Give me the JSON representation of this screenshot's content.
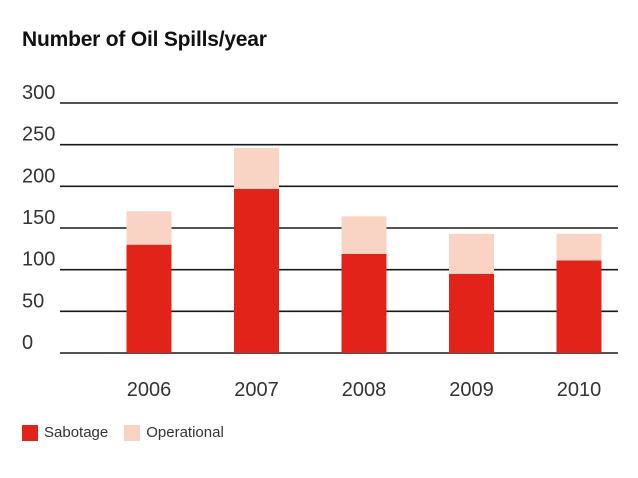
{
  "chart_data": {
    "type": "bar",
    "stacked": true,
    "title": "Number of Oil Spills/year",
    "xlabel": "",
    "ylabel": "",
    "categories": [
      "2006",
      "2007",
      "2008",
      "2009",
      "2010"
    ],
    "series": [
      {
        "name": "Sabotage",
        "values": [
          130,
          197,
          119,
          95,
          111
        ],
        "color": "#e2231a"
      },
      {
        "name": "Operational",
        "values": [
          40,
          49,
          45,
          48,
          32
        ],
        "color": "#f9d4c4"
      }
    ],
    "ylim": [
      0,
      300
    ],
    "yticks": [
      0,
      50,
      100,
      150,
      200,
      250,
      300
    ],
    "grid": true,
    "legend_position": "bottom-left"
  }
}
